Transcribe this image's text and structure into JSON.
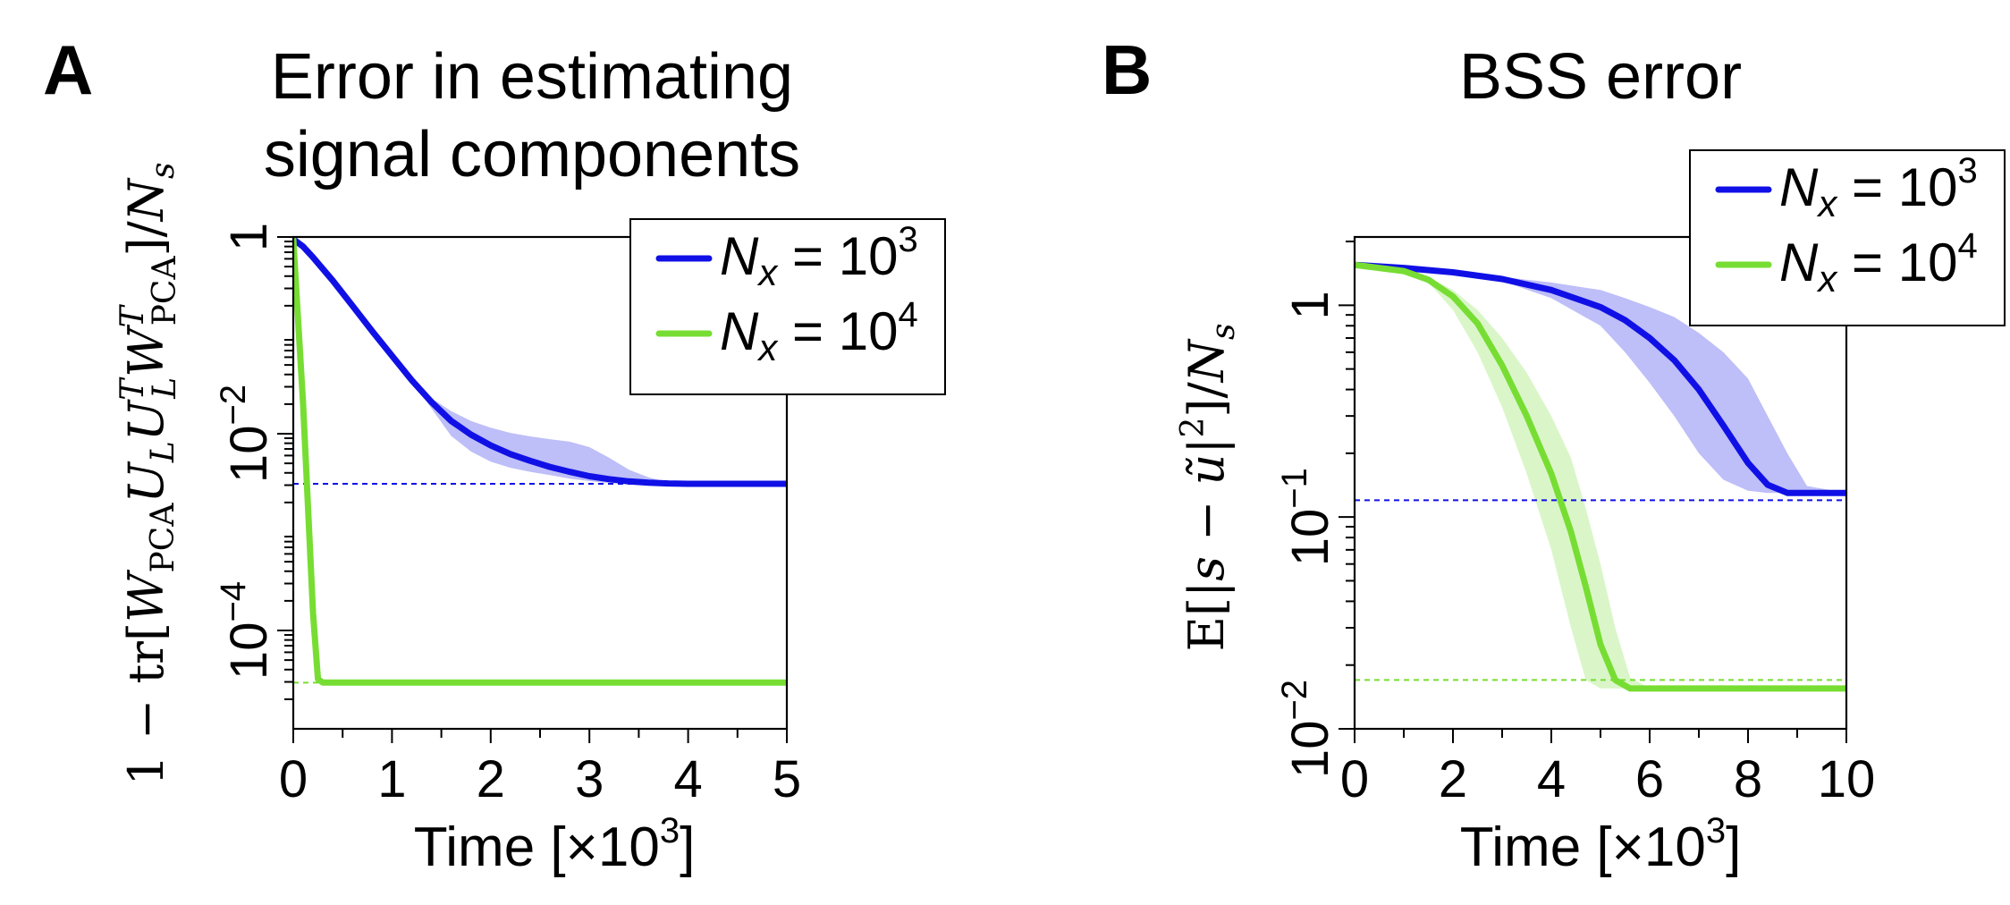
{
  "figure": {
    "panel_labels": [
      "A",
      "B"
    ],
    "exponent_minus": "−"
  },
  "chart_data": [
    {
      "type": "line",
      "panel": "A",
      "title_lines": [
        "Error in estimating",
        "signal components"
      ],
      "xlabel": "Time [×10",
      "xlabel_exp": "3",
      "xlabel_close": "]",
      "ylabel": "1 − tr[W_PCA U_L U_L^T W_PCA^T]/N_s",
      "yscale": "log",
      "xlim": [
        0,
        5
      ],
      "ylim": [
        1e-05,
        1
      ],
      "x_ticks": [
        0,
        1,
        2,
        3,
        4,
        5
      ],
      "x_tick_labels": [
        "0",
        "1",
        "2",
        "3",
        "4",
        "5"
      ],
      "x_minor_step": 0.5,
      "y_ticks": [
        1,
        0.01,
        0.0001
      ],
      "y_tick_labels": [
        {
          "base": "1",
          "exp": ""
        },
        {
          "base": "10",
          "exp": "−2"
        },
        {
          "base": "10",
          "exp": "−4"
        }
      ],
      "series": [
        {
          "name": "N_x = 10^3",
          "legend_label": "N",
          "legend_sub": "x",
          "legend_eq": " = 10",
          "legend_exp": "3",
          "color": "#1010e6",
          "x": [
            0,
            0.1,
            0.2,
            0.4,
            0.6,
            0.8,
            1.0,
            1.2,
            1.4,
            1.6,
            1.8,
            2.0,
            2.2,
            2.4,
            2.6,
            2.8,
            3.0,
            3.2,
            3.4,
            3.6,
            3.8,
            4.0,
            4.5,
            5.0
          ],
          "y": [
            0.95,
            0.8,
            0.62,
            0.36,
            0.2,
            0.11,
            0.062,
            0.035,
            0.021,
            0.0135,
            0.0098,
            0.0076,
            0.0062,
            0.0053,
            0.0046,
            0.0041,
            0.0037,
            0.00345,
            0.00328,
            0.00318,
            0.00312,
            0.0031,
            0.0031,
            0.0031
          ],
          "band_upper": [
            0.95,
            0.8,
            0.62,
            0.36,
            0.2,
            0.11,
            0.062,
            0.035,
            0.023,
            0.017,
            0.0135,
            0.0115,
            0.0102,
            0.0094,
            0.0088,
            0.0083,
            0.0073,
            0.0057,
            0.0043,
            0.0036,
            0.0032,
            0.0031,
            0.0031,
            0.0031
          ],
          "band_lower": [
            0.95,
            0.8,
            0.62,
            0.36,
            0.2,
            0.11,
            0.062,
            0.035,
            0.018,
            0.0095,
            0.0066,
            0.0052,
            0.0045,
            0.0041,
            0.0038,
            0.0035,
            0.0033,
            0.00315,
            0.0031,
            0.0031,
            0.0031,
            0.0031,
            0.0031,
            0.0031
          ],
          "reference": 0.0031
        },
        {
          "name": "N_x = 10^4",
          "legend_label": "N",
          "legend_sub": "x",
          "legend_eq": " = 10",
          "legend_exp": "4",
          "color": "#77dd33",
          "x": [
            0,
            0.1,
            0.2,
            0.25,
            0.3,
            1.0,
            2.0,
            3.0,
            4.0,
            5.0
          ],
          "y": [
            0.95,
            0.02,
            0.00015,
            3.2e-05,
            2.95e-05,
            2.95e-05,
            2.95e-05,
            2.95e-05,
            2.95e-05,
            2.95e-05
          ],
          "reference": 2.95e-05
        }
      ]
    },
    {
      "type": "line",
      "panel": "B",
      "title_lines": [
        "BSS error"
      ],
      "xlabel": "Time [×10",
      "xlabel_exp": "3",
      "xlabel_close": "]",
      "ylabel": "E[|s − ũ|²]/N_s",
      "yscale": "log",
      "xlim": [
        0,
        10
      ],
      "ylim": [
        0.01,
        2.1
      ],
      "x_ticks": [
        0,
        2,
        4,
        6,
        8,
        10
      ],
      "x_tick_labels": [
        "0",
        "2",
        "4",
        "6",
        "8",
        "10"
      ],
      "x_minor_step": 1,
      "y_ticks": [
        1,
        0.1,
        0.01
      ],
      "y_tick_labels": [
        {
          "base": "1",
          "exp": ""
        },
        {
          "base": "10",
          "exp": "−1"
        },
        {
          "base": "10",
          "exp": "−2"
        }
      ],
      "series": [
        {
          "name": "N_x = 10^3",
          "legend_label": "N",
          "legend_sub": "x",
          "legend_eq": " = 10",
          "legend_exp": "3",
          "color": "#1010e6",
          "x": [
            0,
            1,
            2,
            3,
            4,
            5,
            5.5,
            6,
            6.5,
            7,
            7.5,
            8,
            8.4,
            8.8,
            9.2,
            10
          ],
          "y": [
            1.55,
            1.5,
            1.43,
            1.33,
            1.18,
            0.98,
            0.85,
            0.7,
            0.55,
            0.4,
            0.27,
            0.18,
            0.142,
            0.13,
            0.13,
            0.13
          ],
          "band_upper": [
            1.55,
            1.5,
            1.43,
            1.36,
            1.28,
            1.18,
            1.08,
            0.98,
            0.88,
            0.74,
            0.6,
            0.45,
            0.3,
            0.2,
            0.14,
            0.13
          ],
          "band_lower": [
            1.55,
            1.5,
            1.43,
            1.3,
            1.08,
            0.8,
            0.6,
            0.43,
            0.3,
            0.2,
            0.15,
            0.133,
            0.13,
            0.13,
            0.13,
            0.13
          ],
          "reference": 0.12
        },
        {
          "name": "N_x = 10^4",
          "legend_label": "N",
          "legend_sub": "x",
          "legend_eq": " = 10",
          "legend_exp": "4",
          "color": "#77dd33",
          "x": [
            0,
            1,
            1.5,
            2,
            2.5,
            3,
            3.5,
            4,
            4.4,
            4.7,
            5,
            5.3,
            5.6,
            6,
            8,
            10
          ],
          "y": [
            1.55,
            1.45,
            1.32,
            1.1,
            0.82,
            0.52,
            0.3,
            0.16,
            0.085,
            0.047,
            0.025,
            0.017,
            0.0155,
            0.0155,
            0.0155,
            0.0155
          ],
          "band_upper": [
            1.55,
            1.45,
            1.35,
            1.18,
            0.95,
            0.7,
            0.48,
            0.3,
            0.19,
            0.11,
            0.06,
            0.03,
            0.0175,
            0.0155,
            0.0155,
            0.0155
          ],
          "band_lower": [
            1.55,
            1.45,
            1.28,
            0.95,
            0.6,
            0.33,
            0.16,
            0.07,
            0.03,
            0.017,
            0.0155,
            0.0155,
            0.0155,
            0.0155,
            0.0155,
            0.0155
          ],
          "reference": 0.017
        }
      ]
    }
  ]
}
